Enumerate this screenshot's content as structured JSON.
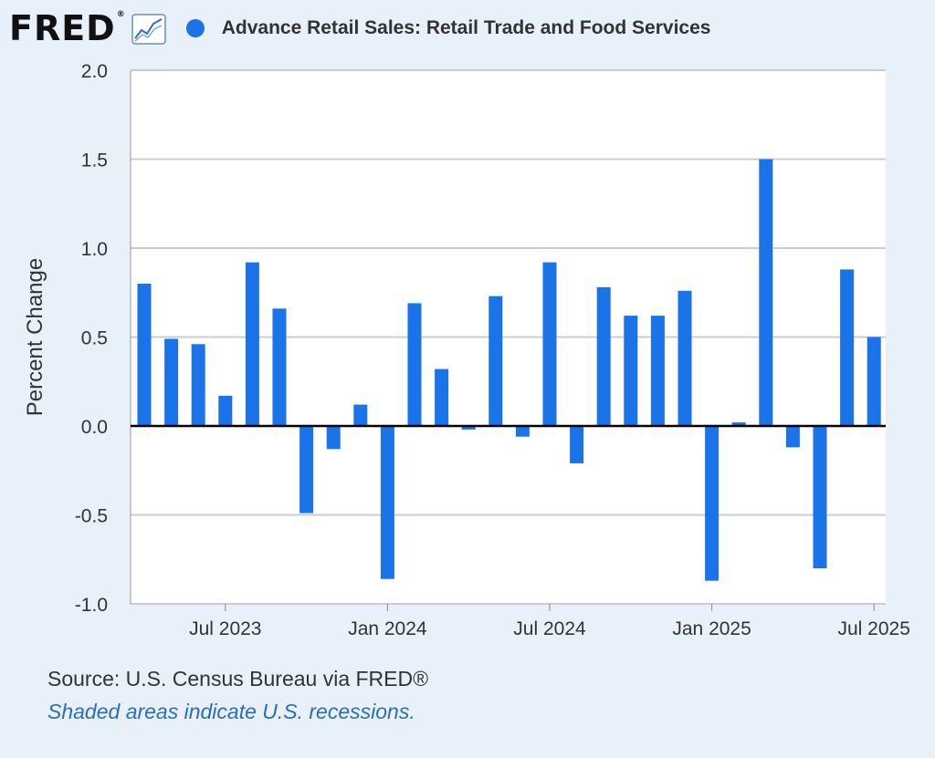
{
  "header": {
    "logo_text": "FRED",
    "logo_reg": "®",
    "logo_icon": "line-graph-icon",
    "legend_label": "Advance Retail Sales: Retail Trade and Food Services"
  },
  "colors": {
    "bar": "#1a73e8",
    "background": "#e8f0fa",
    "plot_bg": "#ffffff",
    "grid": "#cccccc",
    "zero_line": "#000000",
    "text": "#333333",
    "link": "#2a6ebb"
  },
  "chart_data": {
    "type": "bar",
    "title": "Advance Retail Sales: Retail Trade and Food Services",
    "ylabel": "Percent Change",
    "xlabel": "",
    "ylim": [
      -1.0,
      2.0
    ],
    "y_ticks": [
      "2.0",
      "1.5",
      "1.0",
      "0.5",
      "0.0",
      "-0.5",
      "-1.0"
    ],
    "y_tick_values": [
      2.0,
      1.5,
      1.0,
      0.5,
      0.0,
      -0.5,
      -1.0
    ],
    "x_ticks": [
      {
        "label": "Jul 2023",
        "index": 3
      },
      {
        "label": "Jan 2024",
        "index": 9
      },
      {
        "label": "Jul 2024",
        "index": 15
      },
      {
        "label": "Jan 2025",
        "index": 21
      },
      {
        "label": "Jul 2025",
        "index": 27
      }
    ],
    "categories": [
      "Apr 2023",
      "May 2023",
      "Jun 2023",
      "Jul 2023",
      "Aug 2023",
      "Sep 2023",
      "Oct 2023",
      "Nov 2023",
      "Dec 2023",
      "Jan 2024",
      "Feb 2024",
      "Mar 2024",
      "Apr 2024",
      "May 2024",
      "Jun 2024",
      "Jul 2024",
      "Aug 2024",
      "Sep 2024",
      "Oct 2024",
      "Nov 2024",
      "Dec 2024",
      "Jan 2025",
      "Feb 2025",
      "Mar 2025",
      "Apr 2025",
      "May 2025",
      "Jun 2025",
      "Jul 2025"
    ],
    "values": [
      0.8,
      0.49,
      0.46,
      0.17,
      0.92,
      0.66,
      -0.49,
      -0.13,
      0.12,
      -0.86,
      0.69,
      0.32,
      -0.02,
      0.73,
      -0.06,
      0.92,
      -0.21,
      0.78,
      0.62,
      0.62,
      0.76,
      -0.87,
      0.02,
      1.5,
      -0.12,
      -0.8,
      0.88,
      0.5
    ],
    "grid": true,
    "legend_position": "top"
  },
  "footer": {
    "source": "Source: U.S. Census Bureau via FRED®",
    "note": "Shaded areas indicate U.S. recessions."
  }
}
